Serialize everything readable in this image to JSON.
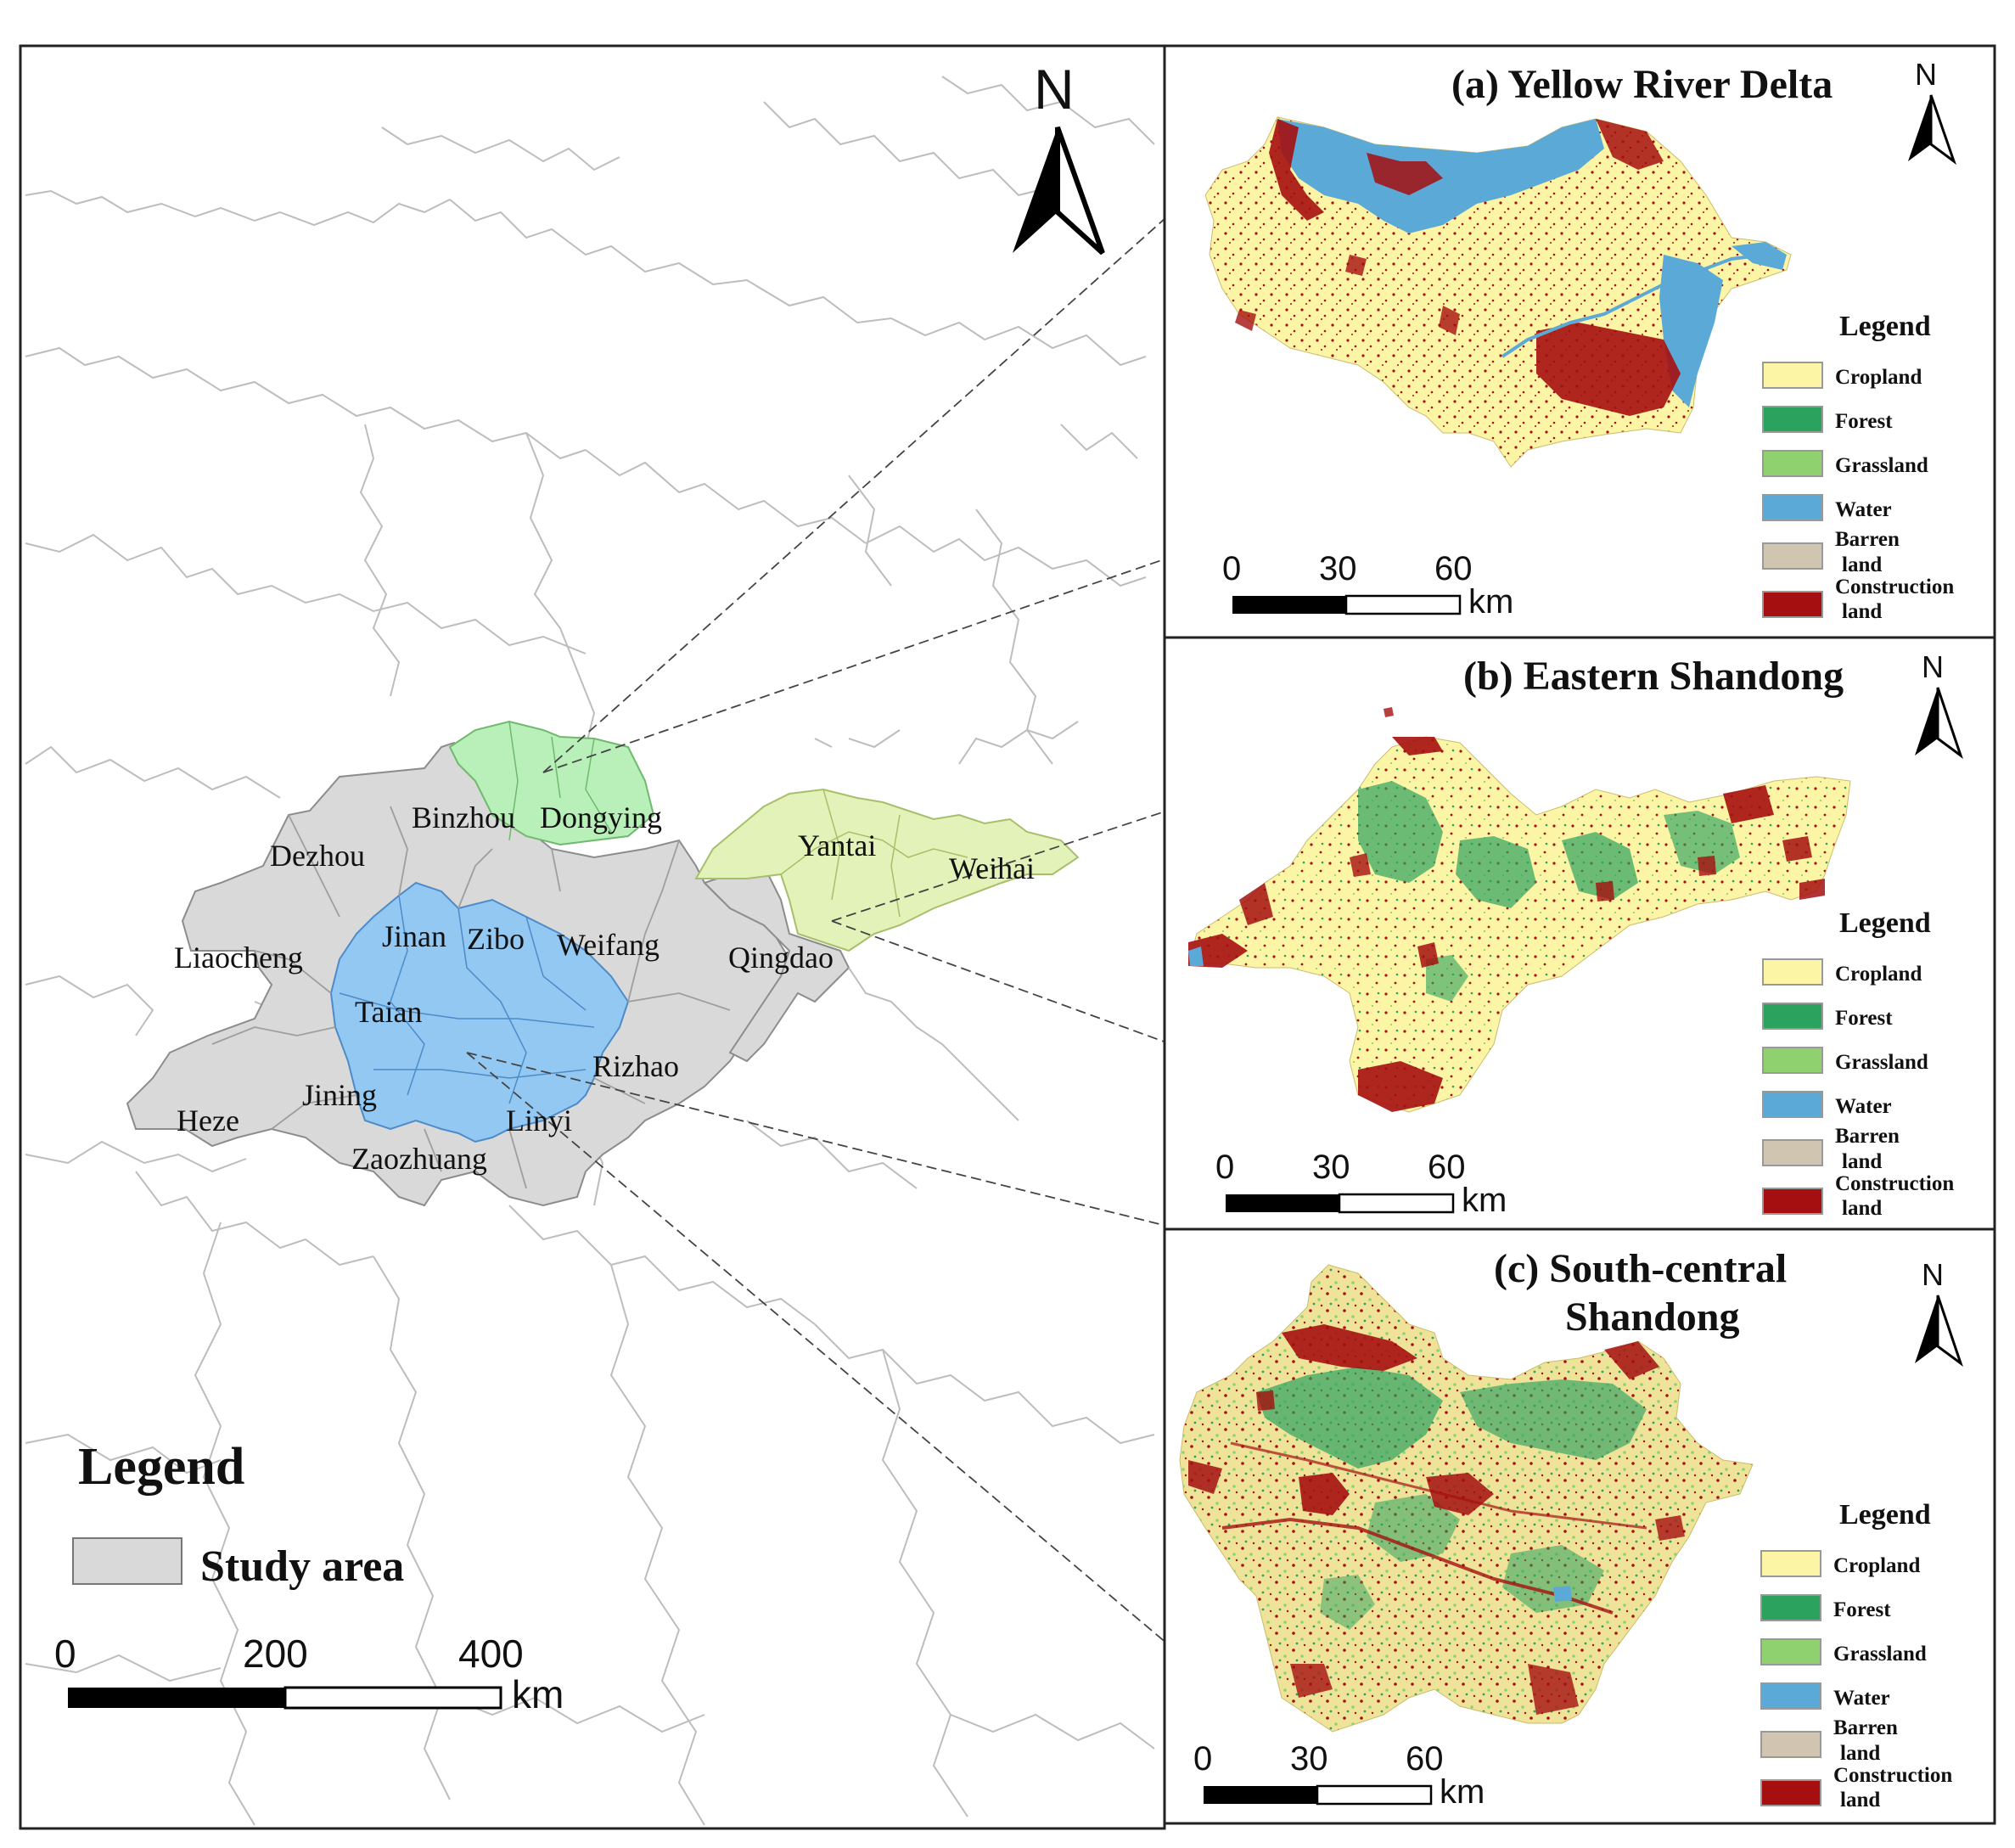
{
  "main_map": {
    "north_label": "N",
    "cities": [
      {
        "name": "Binzhou",
        "group": "yellow_river_delta"
      },
      {
        "name": "Dongying",
        "group": "yellow_river_delta"
      },
      {
        "name": "Dezhou",
        "group": "other"
      },
      {
        "name": "Yantai",
        "group": "eastern_shandong"
      },
      {
        "name": "Weihai",
        "group": "eastern_shandong"
      },
      {
        "name": "Jinan",
        "group": "south_central_shandong"
      },
      {
        "name": "Zibo",
        "group": "other"
      },
      {
        "name": "Weifang",
        "group": "other"
      },
      {
        "name": "Liaocheng",
        "group": "other"
      },
      {
        "name": "Qingdao",
        "group": "other"
      },
      {
        "name": "Taian",
        "group": "south_central_shandong"
      },
      {
        "name": "Rizhao",
        "group": "other"
      },
      {
        "name": "Jining",
        "group": "other"
      },
      {
        "name": "Heze",
        "group": "other"
      },
      {
        "name": "Linyi",
        "group": "south_central_shandong"
      },
      {
        "name": "Zaozhuang",
        "group": "other"
      }
    ],
    "legend_title": "Legend",
    "legend_item": "Study area",
    "scale": {
      "ticks": [
        "0",
        "200",
        "400"
      ],
      "unit": "km"
    }
  },
  "insets": [
    {
      "title": "(a) Yellow River Delta",
      "title_line2": "",
      "north_label": "N",
      "legend_title": "Legend",
      "scale": {
        "ticks": [
          "0",
          "30",
          "60"
        ],
        "unit": "km"
      }
    },
    {
      "title": "(b) Eastern Shandong",
      "title_line2": "",
      "north_label": "N",
      "legend_title": "Legend",
      "scale": {
        "ticks": [
          "0",
          "30",
          "60"
        ],
        "unit": "km"
      }
    },
    {
      "title": "(c) South-central",
      "title_line2": "Shandong",
      "north_label": "N",
      "legend_title": "Legend",
      "scale": {
        "ticks": [
          "0",
          "30",
          "60"
        ],
        "unit": "km"
      }
    }
  ],
  "land_classes": [
    {
      "line1": "Cropland",
      "line2": "",
      "color": "#fdf5a6"
    },
    {
      "line1": "Forest",
      "line2": "",
      "color": "#2ca25f"
    },
    {
      "line1": "Grassland",
      "line2": "",
      "color": "#8fd16f"
    },
    {
      "line1": "Water",
      "line2": "",
      "color": "#5ba9d6"
    },
    {
      "line1": "Barren",
      "line2": "land",
      "color": "#cfc5b0"
    },
    {
      "line1": "Construction",
      "line2": "land",
      "color": "#a50f0f"
    }
  ],
  "colors": {
    "study_area": "#d9d9d9",
    "yellow_river_delta": "#b9f0b9",
    "eastern_shandong": "#e2f2b8",
    "south_central_shandong": "#92c8f2"
  }
}
